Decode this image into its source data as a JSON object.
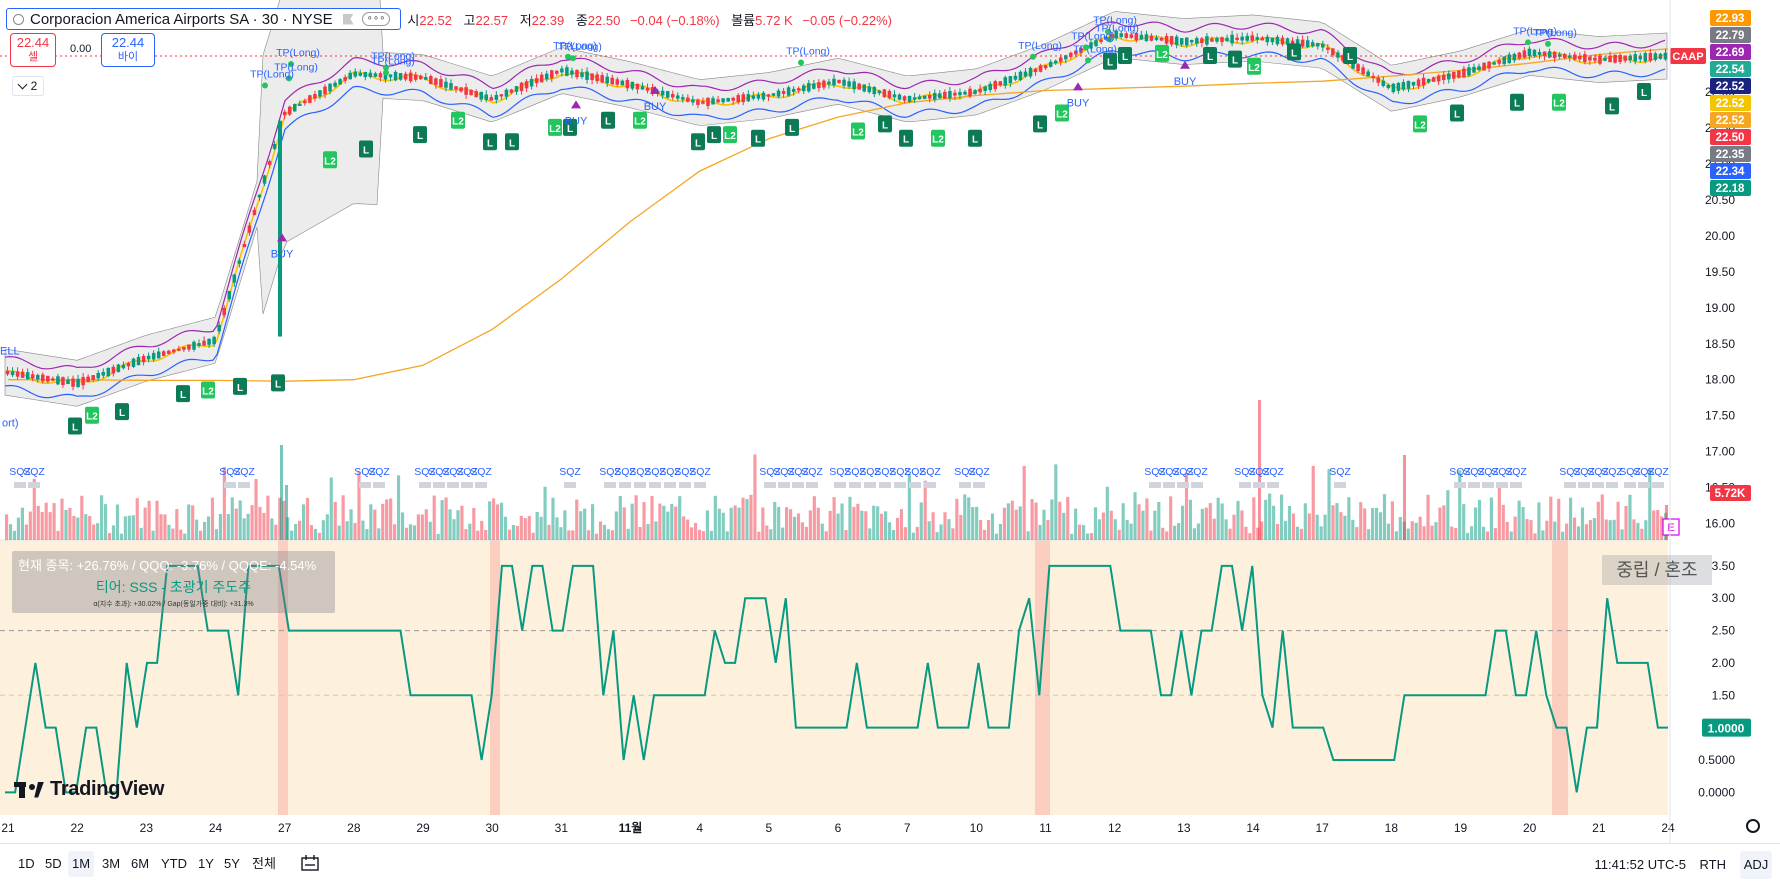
{
  "symbol": {
    "title": "Corporacion America Airports SA · 30 · NYSE",
    "more_label": "∘∘∘"
  },
  "ohlc": {
    "open_label": "시",
    "open": "22.52",
    "high_label": "고",
    "high": "22.57",
    "low_label": "저",
    "low": "22.39",
    "close_label": "종",
    "close": "22.50",
    "change": "−0.04 (−0.18%)",
    "volume_label": "볼륨",
    "volume": "5.72 K",
    "volume_change": "−0.05 (−0.22%)"
  },
  "trade": {
    "sell_price": "22.44",
    "sell_label": "셀",
    "spread": "0.00",
    "buy_price": "22.44",
    "buy_label": "바이"
  },
  "collapse": {
    "count": "2"
  },
  "panel": {
    "line1": "현재 종목: +26.76% / QQQ: -3.76% / QQQE: -4.54%",
    "line2": "티어: SSS - 초광기 주도주",
    "line3": "α(지수 초과): +30.02% / Gap(동일가중 대비): +31.3%",
    "state": "중립 / 혼조"
  },
  "branding": {
    "logo_text": "TradingView"
  },
  "bottom": {
    "ranges": [
      "1D",
      "5D",
      "1M",
      "3M",
      "6M",
      "YTD",
      "1Y",
      "5Y",
      "전체"
    ],
    "active_range": "1M",
    "clock": "11:41:52 UTC-5",
    "rth": "RTH",
    "adj": "ADJ"
  },
  "colors": {
    "up": "#089981",
    "down": "#f23645",
    "ema": "#f5a623",
    "upper_band": "#9c27b0",
    "lower_band": "#2962ff",
    "osc": "#089981",
    "panel_bg": "#fdf0dc",
    "accent": "#2962ff"
  },
  "chart_data": [
    {
      "type": "candlestick",
      "title": "",
      "x_ticks": [
        "21",
        "22",
        "23",
        "24",
        "27",
        "28",
        "29",
        "30",
        "31",
        "11월",
        "4",
        "5",
        "6",
        "7",
        "10",
        "11",
        "12",
        "13",
        "14",
        "17",
        "18",
        "19",
        "20",
        "21",
        "24"
      ],
      "y_ticks": [
        "16.00",
        "16.50",
        "17.00",
        "17.50",
        "18.00",
        "18.50",
        "19.00",
        "19.50",
        "20.00",
        "20.50",
        "21.00",
        "21.50",
        "22.00"
      ],
      "ylim": [
        15.8,
        23.0
      ],
      "daily_close": [
        18.1,
        17.95,
        18.3,
        18.55,
        21.7,
        22.25,
        22.2,
        21.9,
        22.3,
        22.1,
        21.85,
        21.95,
        22.15,
        21.9,
        22.0,
        22.35,
        22.8,
        22.7,
        22.75,
        22.65,
        22.05,
        22.25,
        22.55,
        22.45,
        22.5
      ],
      "ema_line": [
        18.0,
        18.0,
        17.99,
        17.99,
        17.98,
        18.0,
        18.2,
        18.7,
        19.4,
        20.2,
        20.9,
        21.35,
        21.65,
        21.85,
        21.95,
        22.02,
        22.05,
        22.08,
        22.12,
        22.15,
        22.22,
        22.3,
        22.4,
        22.52,
        22.6
      ],
      "price_labels": [
        {
          "value": "22.93",
          "color": "#ff9800"
        },
        {
          "value": "22.79",
          "color": "#787b86"
        },
        {
          "value": "22.69",
          "color": "#9c27b0"
        },
        {
          "value": "22.54",
          "color": "#22ab94"
        },
        {
          "value": "22.52",
          "color": "#1a237e"
        },
        {
          "value": "22.52",
          "color": "#f5c400"
        },
        {
          "value": "22.52",
          "color": "#f5a623"
        },
        {
          "value": "22.50",
          "color": "#f23645"
        },
        {
          "value": "22.35",
          "color": "#787b86"
        },
        {
          "value": "22.34",
          "color": "#2962ff"
        },
        {
          "value": "22.18",
          "color": "#089981"
        },
        {
          "value": "5.72K",
          "color": "#f23645"
        }
      ],
      "symbol_tag": "CAAP",
      "annotations": [
        "TP(Long)",
        "BUY",
        "L",
        "L2",
        "SQZ",
        "SELL",
        "E"
      ]
    },
    {
      "type": "line",
      "title": "",
      "y_ticks": [
        "3.50",
        "3.00",
        "2.50",
        "2.00",
        "1.50",
        "1.00",
        "0.5000",
        "0.0000"
      ],
      "ylim": [
        -0.35,
        3.9
      ],
      "last_value": "1.0000",
      "values": [
        0,
        0,
        1,
        2,
        1,
        1,
        0,
        0,
        1,
        1,
        0,
        0,
        2,
        1,
        2,
        2,
        3.5,
        3.5,
        3.5,
        3.5,
        2.5,
        2.5,
        2.5,
        1.5,
        3.5,
        3.5,
        3.5,
        3.5,
        2.5,
        2.5,
        2.5,
        2.5,
        2.5,
        2.5,
        2.5,
        2.5,
        2.5,
        2.5,
        2.5,
        2.5,
        1.5,
        1.5,
        1.5,
        1.5,
        1.5,
        1.5,
        1.5,
        0.5,
        1.5,
        3.5,
        3.5,
        2.5,
        3.5,
        3.5,
        2.5,
        2.5,
        3.5,
        3.5,
        3.5,
        1.5,
        2.5,
        0.5,
        1.5,
        0.5,
        1.5,
        1.5,
        1.5,
        1.5,
        1.5,
        1.5,
        2.5,
        2,
        2,
        3,
        3,
        3,
        2,
        3,
        1,
        1,
        1,
        1,
        1,
        1,
        2,
        1,
        1,
        1,
        1,
        1,
        1,
        2,
        1,
        1,
        1,
        1,
        2,
        1,
        1,
        1,
        2.5,
        3,
        1.5,
        3.5,
        3.5,
        3.5,
        3.5,
        3.5,
        3.5,
        3.5,
        2.5,
        2.5,
        2.5,
        2.5,
        1.5,
        1.5,
        2.5,
        1.5,
        2.5,
        2.5,
        3.5,
        3.5,
        2.5,
        3.5,
        1.5,
        1,
        2.5,
        1,
        1,
        1,
        1,
        0.5,
        0.5,
        0.5,
        0.5,
        0.5,
        0.5,
        0.5,
        1.5,
        1.5,
        1.5,
        1.5,
        1.5,
        1.5,
        1.5,
        1.5,
        1.5,
        2.5,
        2.5,
        1.5,
        1.5,
        2.5,
        1.5,
        1,
        1,
        0,
        1,
        1,
        3,
        2,
        2,
        2,
        2,
        1,
        1
      ]
    }
  ]
}
